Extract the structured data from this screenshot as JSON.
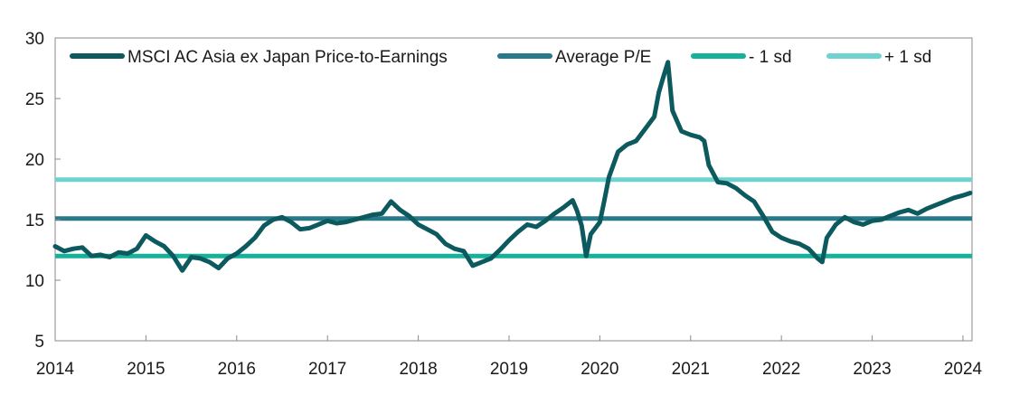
{
  "chart_data": {
    "type": "line",
    "title": "",
    "xlabel": "",
    "ylabel": "",
    "xlim": [
      2014.0,
      2024.1
    ],
    "ylim": [
      5,
      30
    ],
    "yticks": [
      5,
      10,
      15,
      20,
      25,
      30
    ],
    "xticks": [
      2014,
      2015,
      2016,
      2017,
      2018,
      2019,
      2020,
      2021,
      2022,
      2023,
      2024
    ],
    "xtick_labels": [
      "2014",
      "2015",
      "2016",
      "2017",
      "2018",
      "2019",
      "2020",
      "2021",
      "2022",
      "2023",
      "2024"
    ],
    "ytick_labels": [
      "5",
      "10",
      "15",
      "20",
      "25",
      "30"
    ],
    "grid": false,
    "legend_position": "top",
    "series": [
      {
        "name": "MSCI AC Asia ex Japan Price-to-Earnings",
        "color": "#0d5a5e",
        "x": [
          2014.0,
          2014.1,
          2014.2,
          2014.3,
          2014.4,
          2014.5,
          2014.6,
          2014.7,
          2014.8,
          2014.9,
          2015.0,
          2015.1,
          2015.2,
          2015.3,
          2015.4,
          2015.5,
          2015.6,
          2015.7,
          2015.8,
          2015.9,
          2016.0,
          2016.1,
          2016.2,
          2016.3,
          2016.4,
          2016.5,
          2016.6,
          2016.7,
          2016.8,
          2016.9,
          2017.0,
          2017.1,
          2017.2,
          2017.3,
          2017.4,
          2017.5,
          2017.6,
          2017.7,
          2017.8,
          2017.9,
          2018.0,
          2018.1,
          2018.2,
          2018.3,
          2018.4,
          2018.5,
          2018.6,
          2018.7,
          2018.8,
          2018.9,
          2019.0,
          2019.1,
          2019.2,
          2019.3,
          2019.4,
          2019.5,
          2019.6,
          2019.7,
          2019.75,
          2019.8,
          2019.85,
          2019.9,
          2020.0,
          2020.05,
          2020.1,
          2020.2,
          2020.3,
          2020.4,
          2020.5,
          2020.6,
          2020.65,
          2020.7,
          2020.75,
          2020.8,
          2020.9,
          2021.0,
          2021.1,
          2021.15,
          2021.2,
          2021.3,
          2021.4,
          2021.5,
          2021.6,
          2021.7,
          2021.8,
          2021.9,
          2022.0,
          2022.1,
          2022.2,
          2022.3,
          2022.4,
          2022.45,
          2022.5,
          2022.6,
          2022.7,
          2022.8,
          2022.9,
          2023.0,
          2023.1,
          2023.2,
          2023.3,
          2023.4,
          2023.5,
          2023.6,
          2023.7,
          2023.8,
          2023.9,
          2024.0,
          2024.08
        ],
        "y": [
          12.8,
          12.4,
          12.6,
          12.7,
          12.0,
          12.1,
          11.9,
          12.3,
          12.2,
          12.6,
          13.7,
          13.2,
          12.8,
          12.0,
          10.8,
          11.9,
          11.8,
          11.5,
          11.0,
          11.8,
          12.2,
          12.8,
          13.5,
          14.5,
          15.0,
          15.2,
          14.8,
          14.2,
          14.3,
          14.6,
          14.9,
          14.7,
          14.8,
          15.0,
          15.2,
          15.4,
          15.5,
          16.5,
          15.8,
          15.3,
          14.6,
          14.2,
          13.8,
          13.0,
          12.6,
          12.4,
          11.2,
          11.5,
          11.8,
          12.5,
          13.3,
          14.0,
          14.6,
          14.4,
          14.9,
          15.5,
          16.0,
          16.6,
          15.7,
          14.5,
          12.0,
          13.8,
          14.8,
          16.6,
          18.5,
          20.6,
          21.2,
          21.5,
          22.5,
          23.5,
          25.5,
          26.8,
          28.0,
          24.0,
          22.3,
          22.0,
          21.8,
          21.5,
          19.5,
          18.1,
          18.0,
          17.6,
          17.0,
          16.5,
          15.3,
          14.0,
          13.5,
          13.2,
          13.0,
          12.6,
          11.8,
          11.5,
          13.5,
          14.6,
          15.2,
          14.8,
          14.6,
          14.9,
          15.0,
          15.3,
          15.6,
          15.8,
          15.5,
          15.9,
          16.2,
          16.5,
          16.8,
          17.0,
          17.2
        ]
      },
      {
        "name": "Average P/E",
        "color": "#28798a",
        "x": [
          2014.0,
          2024.1
        ],
        "y": [
          15.1,
          15.1
        ]
      },
      {
        "name": "- 1 sd",
        "color": "#16b19b",
        "x": [
          2014.0,
          2024.1
        ],
        "y": [
          12.0,
          12.0
        ]
      },
      {
        "name": "+ 1 sd",
        "color": "#6fd4d0",
        "x": [
          2014.0,
          2024.1
        ],
        "y": [
          18.3,
          18.3
        ]
      }
    ]
  }
}
